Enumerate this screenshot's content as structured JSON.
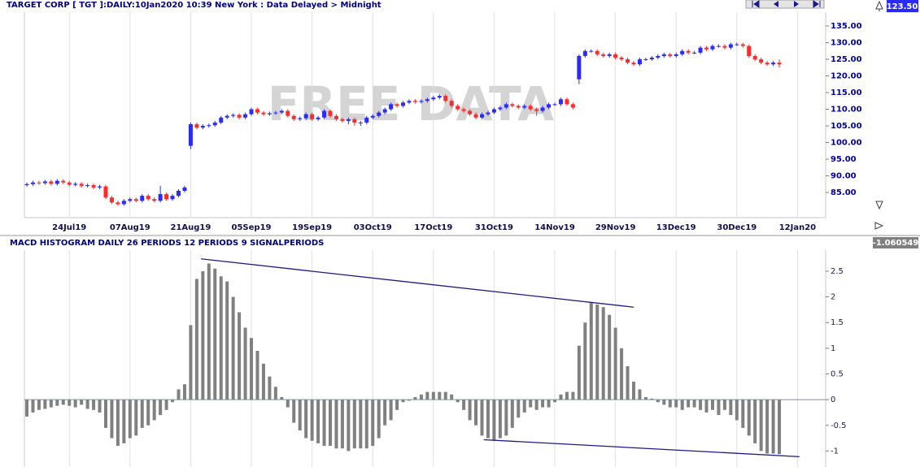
{
  "chart_data": [
    {
      "type": "candlestick",
      "title": "TARGET CORP [ TGT ]:DAILY:10Jan2020 10:39 New York : Data Delayed > Midnight",
      "watermark": "FREE DATA",
      "last_value_label": "123.50",
      "categories": [
        null,
        null,
        null,
        null,
        null,
        null,
        null,
        "24Jul19",
        null,
        null,
        null,
        null,
        null,
        null,
        null,
        null,
        null,
        "07Aug19",
        null,
        null,
        null,
        null,
        null,
        null,
        null,
        null,
        null,
        "21Aug19",
        null,
        null,
        null,
        null,
        null,
        null,
        null,
        null,
        null,
        "05Sep19",
        null,
        null,
        null,
        null,
        null,
        null,
        null,
        null,
        null,
        "19Sep19",
        null,
        null,
        null,
        null,
        null,
        null,
        null,
        null,
        null,
        "03Oct19",
        null,
        null,
        null,
        null,
        null,
        null,
        null,
        null,
        null,
        "17Oct19",
        null,
        null,
        null,
        null,
        null,
        null,
        null,
        null,
        null,
        "31Oct19",
        null,
        null,
        null,
        null,
        null,
        null,
        null,
        null,
        null,
        "14Nov19",
        null,
        null,
        null,
        null,
        null,
        null,
        null,
        null,
        null,
        "29Nov19",
        null,
        null,
        null,
        null,
        null,
        null,
        null,
        null,
        null,
        "13Dec19",
        null,
        null,
        null,
        null,
        null,
        null,
        null,
        null,
        null,
        "30Dec19",
        null,
        null,
        null,
        null,
        null,
        null,
        null,
        null,
        null,
        "12Jan20",
        null,
        null,
        null,
        null
      ],
      "open": [
        87.2,
        87.5,
        88.0,
        87.8,
        88.3,
        87.6,
        88.5,
        88.0,
        87.3,
        87.6,
        87.0,
        87.2,
        86.5,
        86.8,
        83.5,
        82.0,
        81.5,
        82.5,
        83.0,
        82.5,
        84.0,
        83.0,
        82.5,
        84.5,
        83.0,
        84.0,
        85.5,
        99.0,
        105.5,
        104.5,
        105.0,
        105.2,
        106.0,
        107.5,
        108.0,
        108.3,
        107.5,
        108.5,
        110.0,
        109.0,
        108.5,
        108.8,
        109.0,
        109.5,
        108.0,
        107.0,
        107.3,
        108.5,
        107.0,
        107.5,
        109.5,
        108.0,
        107.0,
        106.5,
        107.0,
        106.0,
        106.0,
        107.5,
        108.0,
        109.0,
        110.0,
        111.5,
        111.0,
        112.0,
        112.5,
        112.2,
        112.5,
        113.0,
        113.5,
        114.0,
        112.5,
        111.0,
        110.0,
        109.5,
        108.5,
        107.5,
        108.5,
        109.0,
        110.0,
        110.5,
        111.5,
        111.0,
        110.5,
        111.0,
        110.0,
        109.5,
        110.5,
        111.5,
        111.5,
        113.0,
        111.5,
        119.0,
        126.0,
        127.5,
        127.5,
        126.5,
        126.0,
        126.5,
        125.5,
        125.0,
        124.0,
        123.5,
        125.0,
        125.0,
        125.5,
        126.0,
        126.5,
        126.0,
        126.5,
        127.5,
        127.0,
        127.0,
        128.5,
        128.0,
        129.0,
        129.0,
        128.5,
        129.5,
        129.5,
        129.0,
        126.0,
        125.0,
        124.0,
        123.5,
        124.0,
        null,
        null,
        null,
        null,
        null,
        null,
        null
      ],
      "high": [
        88.0,
        88.5,
        88.5,
        88.8,
        88.8,
        89.0,
        89.0,
        88.5,
        88.1,
        88.1,
        87.7,
        87.7,
        87.3,
        87.3,
        84.0,
        82.5,
        83.0,
        83.5,
        83.5,
        84.5,
        84.5,
        83.5,
        87.0,
        85.0,
        84.5,
        86.0,
        87.0,
        106.0,
        106.0,
        105.5,
        105.7,
        106.5,
        108.0,
        108.5,
        108.8,
        108.8,
        109.0,
        110.5,
        110.5,
        109.5,
        109.3,
        109.5,
        110.0,
        110.0,
        108.5,
        107.8,
        109.0,
        109.0,
        108.0,
        110.0,
        110.0,
        108.5,
        107.5,
        107.5,
        107.5,
        106.5,
        108.0,
        108.5,
        109.5,
        110.5,
        112.0,
        112.0,
        112.5,
        113.0,
        113.0,
        113.0,
        113.5,
        114.0,
        114.5,
        114.5,
        113.0,
        111.5,
        110.5,
        110.0,
        109.0,
        109.0,
        109.5,
        110.5,
        111.0,
        112.0,
        112.0,
        111.5,
        111.5,
        111.5,
        110.5,
        111.0,
        112.0,
        112.0,
        113.5,
        113.5,
        112.0,
        126.5,
        128.0,
        128.0,
        128.0,
        127.0,
        127.0,
        127.0,
        126.0,
        125.5,
        124.5,
        125.5,
        125.5,
        126.0,
        126.5,
        127.0,
        127.0,
        127.0,
        128.0,
        128.0,
        127.5,
        129.0,
        129.0,
        129.5,
        129.5,
        129.5,
        130.0,
        130.0,
        130.0,
        129.5,
        126.5,
        125.5,
        124.5,
        124.5,
        125.0,
        null,
        null,
        null,
        null,
        null,
        null,
        null
      ],
      "low": [
        86.7,
        87.0,
        87.3,
        87.3,
        87.1,
        87.1,
        87.5,
        86.8,
        86.8,
        86.5,
        86.5,
        86.0,
        86.0,
        83.0,
        81.5,
        81.0,
        81.0,
        82.0,
        82.0,
        82.0,
        82.5,
        82.0,
        82.0,
        82.5,
        82.5,
        83.5,
        85.0,
        98.0,
        104.0,
        104.0,
        104.5,
        104.7,
        105.5,
        107.0,
        107.5,
        107.0,
        107.0,
        108.0,
        108.5,
        108.0,
        108.0,
        108.3,
        108.5,
        107.5,
        106.5,
        106.5,
        106.8,
        106.5,
        106.5,
        107.0,
        107.5,
        106.5,
        106.0,
        105.5,
        105.0,
        105.0,
        105.5,
        107.0,
        107.5,
        108.5,
        109.5,
        110.5,
        110.5,
        111.5,
        111.7,
        111.7,
        112.0,
        112.5,
        113.0,
        112.0,
        110.5,
        109.5,
        109.0,
        108.0,
        107.0,
        107.0,
        108.0,
        108.5,
        109.5,
        110.0,
        110.5,
        110.0,
        110.0,
        109.5,
        108.0,
        109.0,
        110.0,
        111.0,
        111.0,
        111.0,
        110.0,
        117.5,
        125.5,
        127.0,
        126.0,
        125.5,
        125.5,
        125.0,
        124.5,
        123.5,
        123.0,
        123.0,
        124.5,
        124.5,
        125.0,
        125.5,
        125.5,
        125.5,
        126.0,
        126.5,
        126.5,
        126.5,
        127.5,
        127.5,
        128.5,
        128.0,
        128.0,
        129.0,
        128.5,
        125.5,
        124.5,
        123.5,
        123.0,
        123.0,
        122.5,
        null,
        null,
        null,
        null,
        null,
        null,
        null
      ],
      "close": [
        87.5,
        88.0,
        87.8,
        88.3,
        87.6,
        88.5,
        88.0,
        87.3,
        87.6,
        87.0,
        87.2,
        86.5,
        86.8,
        83.5,
        82.0,
        81.5,
        82.5,
        83.0,
        82.5,
        84.0,
        83.0,
        82.5,
        84.5,
        83.0,
        84.0,
        85.5,
        86.5,
        105.5,
        104.5,
        105.0,
        105.2,
        106.0,
        107.5,
        108.0,
        108.3,
        107.5,
        108.5,
        110.0,
        109.0,
        108.5,
        108.8,
        109.0,
        109.5,
        108.0,
        107.0,
        107.3,
        108.5,
        107.0,
        107.5,
        109.5,
        108.0,
        107.0,
        106.5,
        107.0,
        106.0,
        106.0,
        107.5,
        108.0,
        109.0,
        110.0,
        111.5,
        111.0,
        112.0,
        112.5,
        112.2,
        112.5,
        113.0,
        113.5,
        114.0,
        112.5,
        111.0,
        110.0,
        109.5,
        108.5,
        107.5,
        108.5,
        109.0,
        110.0,
        110.5,
        111.5,
        111.0,
        110.5,
        111.0,
        110.0,
        109.5,
        110.5,
        111.5,
        111.5,
        113.0,
        111.5,
        110.5,
        126.0,
        127.5,
        127.5,
        126.5,
        126.0,
        126.5,
        125.5,
        125.0,
        124.0,
        123.5,
        125.0,
        125.0,
        125.5,
        126.0,
        126.5,
        126.0,
        126.5,
        127.5,
        127.0,
        127.0,
        128.5,
        128.0,
        129.0,
        129.0,
        128.5,
        129.5,
        129.5,
        129.0,
        126.0,
        125.0,
        124.0,
        123.5,
        124.0,
        123.5,
        null,
        null,
        null,
        null,
        null,
        null,
        null
      ],
      "up_color": "#2a2aff",
      "down_color": "#ff2a2a",
      "ylim": [
        77.44,
        139.15
      ],
      "yticks": [
        {
          "value": 85,
          "label": "85.00"
        },
        {
          "value": 90,
          "label": "90.00"
        },
        {
          "value": 95,
          "label": "95.00"
        },
        {
          "value": 100,
          "label": "100.00"
        },
        {
          "value": 105,
          "label": "105.00"
        },
        {
          "value": 110,
          "label": "110.00"
        },
        {
          "value": 115,
          "label": "115.00"
        },
        {
          "value": 120,
          "label": "120.00"
        },
        {
          "value": 125,
          "label": "125.00"
        },
        {
          "value": 130,
          "label": "130.00"
        },
        {
          "value": 135,
          "label": "135.00"
        }
      ],
      "grid": true
    },
    {
      "type": "bar",
      "title": "MACD HISTOGRAM DAILY 26 PERIODS 12 PERIODS 9 SIGNALPERIODS",
      "last_value_label": "-1.060549",
      "values": [
        -0.33,
        -0.25,
        -0.2,
        -0.18,
        -0.15,
        -0.12,
        -0.1,
        -0.12,
        -0.15,
        -0.1,
        -0.18,
        -0.2,
        -0.25,
        -0.55,
        -0.75,
        -0.9,
        -0.85,
        -0.75,
        -0.7,
        -0.55,
        -0.5,
        -0.4,
        -0.3,
        -0.2,
        -0.05,
        0.2,
        0.3,
        1.45,
        2.35,
        2.5,
        2.65,
        2.55,
        2.4,
        2.3,
        2.0,
        1.7,
        1.4,
        1.2,
        0.95,
        0.7,
        0.45,
        0.25,
        0.05,
        -0.15,
        -0.45,
        -0.6,
        -0.75,
        -0.8,
        -0.85,
        -0.9,
        -0.9,
        -0.95,
        -0.95,
        -1.0,
        -0.95,
        -0.95,
        -0.95,
        -0.9,
        -0.75,
        -0.5,
        -0.4,
        -0.2,
        -0.05,
        -0.02,
        0.05,
        0.1,
        0.15,
        0.15,
        0.15,
        0.15,
        0.1,
        -0.05,
        -0.2,
        -0.4,
        -0.5,
        -0.7,
        -0.75,
        -0.8,
        -0.75,
        -0.7,
        -0.55,
        -0.35,
        -0.25,
        -0.15,
        -0.2,
        -0.15,
        -0.15,
        -0.05,
        0.1,
        0.15,
        0.15,
        1.05,
        1.5,
        1.9,
        1.85,
        1.8,
        1.65,
        1.4,
        1.0,
        0.65,
        0.35,
        0.2,
        0.05,
        0.02,
        -0.05,
        -0.1,
        -0.15,
        -0.15,
        -0.2,
        -0.15,
        -0.15,
        -0.2,
        -0.25,
        -0.2,
        -0.3,
        -0.2,
        -0.3,
        -0.4,
        -0.55,
        -0.7,
        -0.85,
        -1.0,
        -1.05,
        -1.05,
        -1.06,
        null,
        null,
        null,
        null,
        null,
        null,
        null
      ],
      "color": "#808080",
      "ylim": [
        -1.31,
        2.91
      ],
      "yticks": [
        2.5,
        2,
        1.5,
        1,
        0.5,
        0,
        -0.5,
        -1
      ],
      "trendlines": [
        {
          "x": [
            28.7,
            100
          ],
          "y": [
            2.74,
            1.8
          ]
        },
        {
          "x": [
            75.3,
            127.3
          ],
          "y": [
            -0.78,
            -1.11
          ]
        }
      ],
      "trendline_color": "#1a1a8c"
    }
  ]
}
